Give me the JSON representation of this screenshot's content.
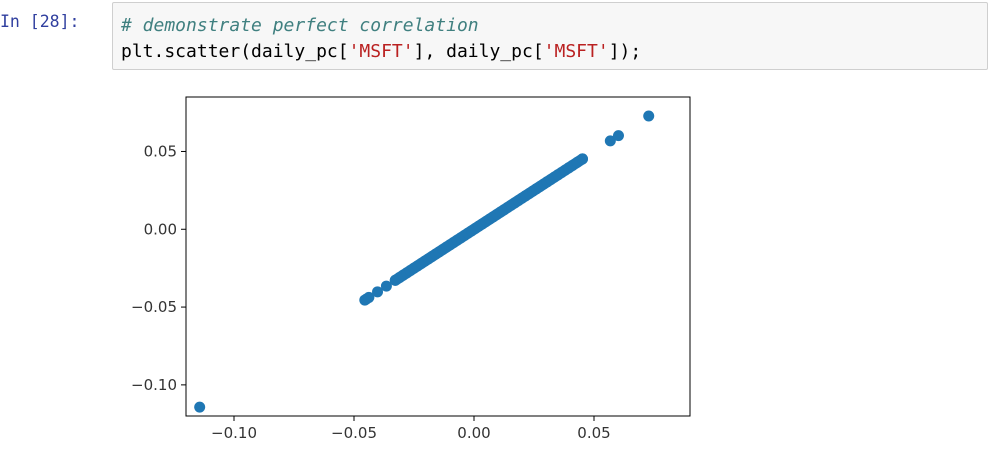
{
  "cell": {
    "prompt": "In [28]:",
    "comment": "# demonstrate perfect correlation",
    "code_prefix": "plt.scatter(daily_pc[",
    "code_str1": "'MSFT'",
    "code_mid": "], daily_pc[",
    "code_str2": "'MSFT'",
    "code_suffix": "]);"
  },
  "chart_data": {
    "type": "scatter",
    "title": "",
    "xlabel": "",
    "ylabel": "",
    "xlim": [
      -0.12,
      0.09
    ],
    "ylim": [
      -0.12,
      0.085
    ],
    "xticks": [
      -0.1,
      -0.05,
      0.0,
      0.05
    ],
    "xtick_labels": [
      "−0.10",
      "−0.05",
      "0.00",
      "0.05"
    ],
    "yticks": [
      -0.1,
      -0.05,
      0.0,
      0.05
    ],
    "ytick_labels": [
      "−0.10",
      "−0.05",
      "0.00",
      "0.05"
    ],
    "grid": false,
    "marker_color": "#1f77b4",
    "series": [
      {
        "x": [
          -0.1143,
          -0.0455,
          -0.0448,
          -0.0438,
          -0.0402,
          -0.0365,
          -0.0328,
          -0.031,
          -0.0295,
          -0.028,
          -0.0265,
          -0.025,
          -0.0235,
          -0.022,
          -0.0205,
          -0.019,
          -0.0175,
          -0.016,
          -0.0145,
          -0.013,
          -0.0115,
          -0.01,
          -0.0085,
          -0.007,
          -0.0055,
          -0.004,
          -0.0025,
          -0.001,
          0.0005,
          0.002,
          0.0035,
          0.005,
          0.0065,
          0.008,
          0.0095,
          0.011,
          0.0125,
          0.014,
          0.0155,
          0.017,
          0.0185,
          0.02,
          0.0215,
          0.023,
          0.0245,
          0.026,
          0.0275,
          0.029,
          0.0305,
          0.032,
          0.0335,
          0.035,
          0.0365,
          0.038,
          0.0395,
          0.041,
          0.043,
          0.0452,
          0.0568,
          0.0602,
          0.0728
        ],
        "y": [
          -0.1143,
          -0.0455,
          -0.0448,
          -0.0438,
          -0.0402,
          -0.0365,
          -0.0328,
          -0.031,
          -0.0295,
          -0.028,
          -0.0265,
          -0.025,
          -0.0235,
          -0.022,
          -0.0205,
          -0.019,
          -0.0175,
          -0.016,
          -0.0145,
          -0.013,
          -0.0115,
          -0.01,
          -0.0085,
          -0.007,
          -0.0055,
          -0.004,
          -0.0025,
          -0.001,
          0.0005,
          0.002,
          0.0035,
          0.005,
          0.0065,
          0.008,
          0.0095,
          0.011,
          0.0125,
          0.014,
          0.0155,
          0.017,
          0.0185,
          0.02,
          0.0215,
          0.023,
          0.0245,
          0.026,
          0.0275,
          0.029,
          0.0305,
          0.032,
          0.0335,
          0.035,
          0.0365,
          0.038,
          0.0395,
          0.041,
          0.043,
          0.0452,
          0.0568,
          0.0602,
          0.0728
        ]
      }
    ]
  }
}
